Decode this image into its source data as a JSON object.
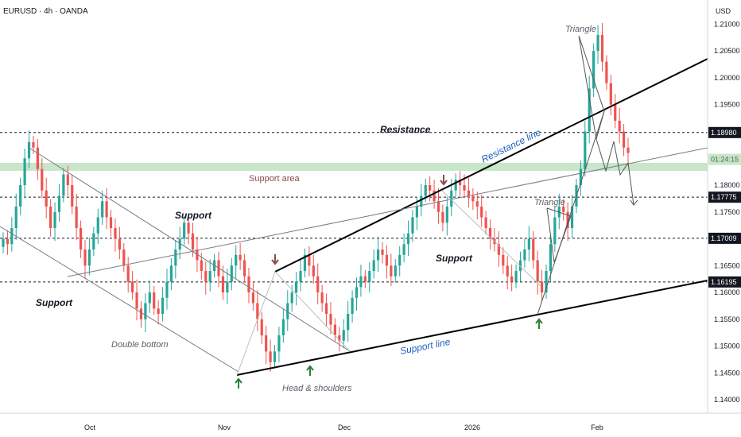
{
  "chart_data": {
    "type": "candlestick",
    "title": "EURUSD · 4h · OANDA",
    "currency": "USD",
    "ylim": [
      1.1375,
      1.2145
    ],
    "y_ticks": [
      1.14,
      1.145,
      1.15,
      1.155,
      1.16,
      1.165,
      1.17,
      1.175,
      1.18,
      1.185,
      1.19,
      1.195,
      1.2,
      1.205,
      1.21
    ],
    "x_labels": [
      "Oct",
      "Nov",
      "Dec",
      "2026",
      "Feb"
    ],
    "price_levels": [
      {
        "label": "1.18980",
        "value": 1.1898
      },
      {
        "label": "1.17775",
        "value": 1.17775
      },
      {
        "label": "1.17009",
        "value": 1.17009
      },
      {
        "label": "1.16195",
        "value": 1.16195
      }
    ],
    "current_price": {
      "label": "01:24:15",
      "value": 1.1848
    },
    "annotations": [
      {
        "text": "Resistance",
        "style": "bold"
      },
      {
        "text": "Support",
        "style": "bold"
      },
      {
        "text": "Support",
        "style": "bold"
      },
      {
        "text": "Support",
        "style": "bold"
      },
      {
        "text": "Support area",
        "style": "brown"
      },
      {
        "text": "Double bottom",
        "style": "gray"
      },
      {
        "text": "Head & shoulders",
        "style": "gray"
      },
      {
        "text": "Triangle",
        "style": "gray"
      },
      {
        "text": "Triangle",
        "style": "gray"
      },
      {
        "text": "Resistance line",
        "style": "blue"
      },
      {
        "text": "Support line",
        "style": "blue"
      }
    ],
    "colors": {
      "up": "#26a69a",
      "down": "#ef5350",
      "support_area": "#c8e6c9",
      "label_blue": "#1e5fbf",
      "arrow_up": "#2e7d32",
      "arrow_down": "#8a4b4b"
    },
    "series": [
      {
        "values": [
          1.17,
          1.169,
          1.172,
          1.176,
          1.18,
          1.185,
          1.188,
          1.187,
          1.183,
          1.179,
          1.176,
          1.172,
          1.175,
          1.178,
          1.182,
          1.18,
          1.176,
          1.172,
          1.168,
          1.165,
          1.168,
          1.171,
          1.174,
          1.177,
          1.174,
          1.172,
          1.17,
          1.168,
          1.165,
          1.162,
          1.16,
          1.157,
          1.155,
          1.158,
          1.16,
          1.157,
          1.156,
          1.159,
          1.162,
          1.165,
          1.168,
          1.17,
          1.173,
          1.171,
          1.168,
          1.166,
          1.164,
          1.162,
          1.164,
          1.166,
          1.163,
          1.16,
          1.162,
          1.165,
          1.167,
          1.166,
          1.163,
          1.16,
          1.158,
          1.155,
          1.152,
          1.149,
          1.147,
          1.149,
          1.152,
          1.155,
          1.158,
          1.16,
          1.162,
          1.164,
          1.167,
          1.165,
          1.163,
          1.16,
          1.158,
          1.156,
          1.154,
          1.152,
          1.151,
          1.153,
          1.156,
          1.159,
          1.161,
          1.163,
          1.162,
          1.164,
          1.166,
          1.168,
          1.167,
          1.165,
          1.163,
          1.165,
          1.167,
          1.169,
          1.171,
          1.174,
          1.176,
          1.178,
          1.18,
          1.179,
          1.177,
          1.175,
          1.173,
          1.176,
          1.179,
          1.181,
          1.18,
          1.179,
          1.178,
          1.177,
          1.176,
          1.174,
          1.172,
          1.17,
          1.169,
          1.167,
          1.165,
          1.163,
          1.162,
          1.164,
          1.166,
          1.168,
          1.17,
          1.166,
          1.162,
          1.16,
          1.164,
          1.169,
          1.174,
          1.176,
          1.175,
          1.172,
          1.176,
          1.18,
          1.183,
          1.19,
          1.198,
          1.205,
          1.208,
          1.203,
          1.199,
          1.195,
          1.192,
          1.19,
          1.187,
          1.186
        ]
      }
    ]
  }
}
